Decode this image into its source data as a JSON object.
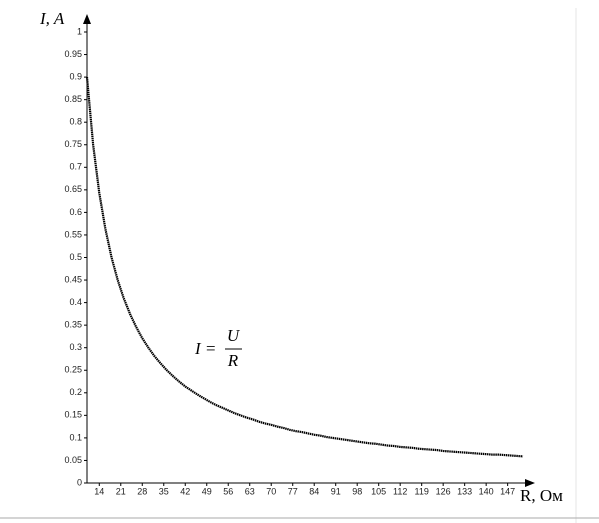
{
  "chart_data": {
    "type": "line",
    "xlabel": "R, Ом",
    "ylabel": "I, A",
    "annotation": {
      "lhs": "I =",
      "numerator": "U",
      "denominator": "R"
    },
    "x": [
      10,
      12,
      14,
      16,
      18,
      20,
      22,
      24,
      26,
      28,
      30,
      32,
      34,
      36,
      38,
      40,
      42,
      44,
      46,
      48,
      50,
      52,
      54,
      56,
      58,
      60,
      62,
      64,
      66,
      68,
      70,
      72,
      74,
      76,
      78,
      80,
      82,
      84,
      86,
      88,
      90,
      92,
      94,
      96,
      98,
      100,
      102,
      104,
      106,
      108,
      110,
      112,
      114,
      116,
      118,
      120,
      122,
      124,
      126,
      128,
      130,
      132,
      134,
      136,
      138,
      140,
      142,
      144,
      146,
      148,
      150,
      152
    ],
    "values": [
      0.9,
      0.75,
      0.643,
      0.563,
      0.5,
      0.45,
      0.409,
      0.375,
      0.346,
      0.321,
      0.3,
      0.281,
      0.265,
      0.25,
      0.237,
      0.225,
      0.214,
      0.205,
      0.196,
      0.188,
      0.18,
      0.173,
      0.167,
      0.161,
      0.155,
      0.15,
      0.145,
      0.141,
      0.136,
      0.132,
      0.129,
      0.125,
      0.122,
      0.118,
      0.115,
      0.113,
      0.11,
      0.107,
      0.105,
      0.102,
      0.1,
      0.098,
      0.096,
      0.094,
      0.092,
      0.09,
      0.088,
      0.087,
      0.085,
      0.083,
      0.082,
      0.08,
      0.079,
      0.078,
      0.076,
      0.075,
      0.074,
      0.073,
      0.071,
      0.07,
      0.069,
      0.068,
      0.067,
      0.066,
      0.065,
      0.064,
      0.063,
      0.063,
      0.062,
      0.061,
      0.06,
      0.059
    ],
    "color": "#000000",
    "xlim": [
      10,
      152
    ],
    "xticks": [
      14,
      21,
      28,
      35,
      42,
      49,
      56,
      63,
      70,
      77,
      84,
      91,
      98,
      105,
      112,
      119,
      126,
      133,
      140,
      147
    ],
    "ylim": [
      0,
      1
    ],
    "yticks": [
      0,
      0.05,
      0.1,
      0.15,
      0.2,
      0.25,
      0.3,
      0.35,
      0.4,
      0.45,
      0.5,
      0.55,
      0.6,
      0.65,
      0.7,
      0.75,
      0.8,
      0.85,
      0.9,
      0.95,
      1
    ]
  }
}
